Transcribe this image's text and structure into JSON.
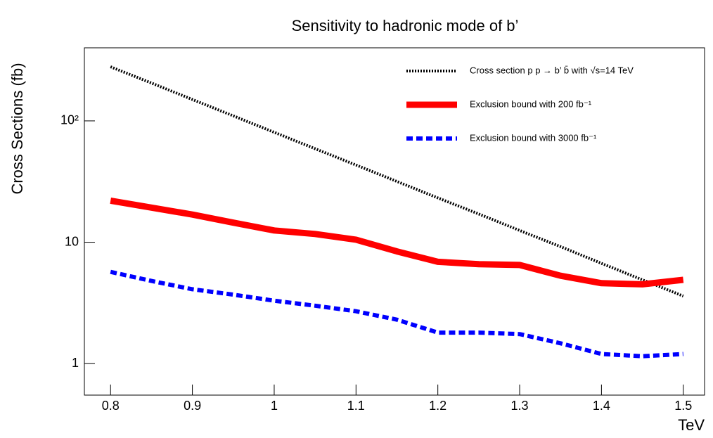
{
  "chart_data": {
    "type": "line",
    "title": "Sensitivity to hadronic mode of b’",
    "x_label": "TeV",
    "y_label": "Cross Sections (fb)",
    "x": [
      0.8,
      0.85,
      0.9,
      0.95,
      1.0,
      1.05,
      1.1,
      1.15,
      1.2,
      1.25,
      1.3,
      1.35,
      1.4,
      1.45,
      1.5
    ],
    "series": [
      {
        "name": "Cross section p p → b’ b̄ with √s=14 TeV",
        "color": "#000000",
        "line_style": "dotted",
        "values": [
          279,
          205,
          150,
          110,
          80.5,
          59,
          43.3,
          31.7,
          23.2,
          17.1,
          12.5,
          9.2,
          6.7,
          4.9,
          3.6
        ]
      },
      {
        "name": "Exclusion bound with  200 fb⁻¹",
        "color": "#ff0000",
        "line_style": "solid",
        "values": [
          22,
          19.3,
          16.9,
          14.5,
          12.5,
          11.7,
          10.5,
          8.4,
          6.9,
          6.6,
          6.5,
          5.3,
          4.6,
          4.5,
          4.9
        ]
      },
      {
        "name": "Exclusion bound with 3000 fb⁻¹",
        "color": "#0000ff",
        "line_style": "dashed",
        "values": [
          5.7,
          4.8,
          4.1,
          3.7,
          3.3,
          3.0,
          2.7,
          2.3,
          1.8,
          1.8,
          1.75,
          1.47,
          1.2,
          1.15,
          1.2
        ]
      }
    ],
    "xlim": [
      0.768,
      1.526
    ],
    "ylim": [
      0.55,
      400
    ],
    "xticks": [
      0.8,
      0.9,
      1,
      1.1,
      1.2,
      1.3,
      1.4,
      1.5
    ],
    "yticks": [
      1,
      10,
      {
        "value": 100,
        "label": "10²"
      }
    ],
    "y_scale": "log",
    "legend": "top-right",
    "grid": false
  }
}
